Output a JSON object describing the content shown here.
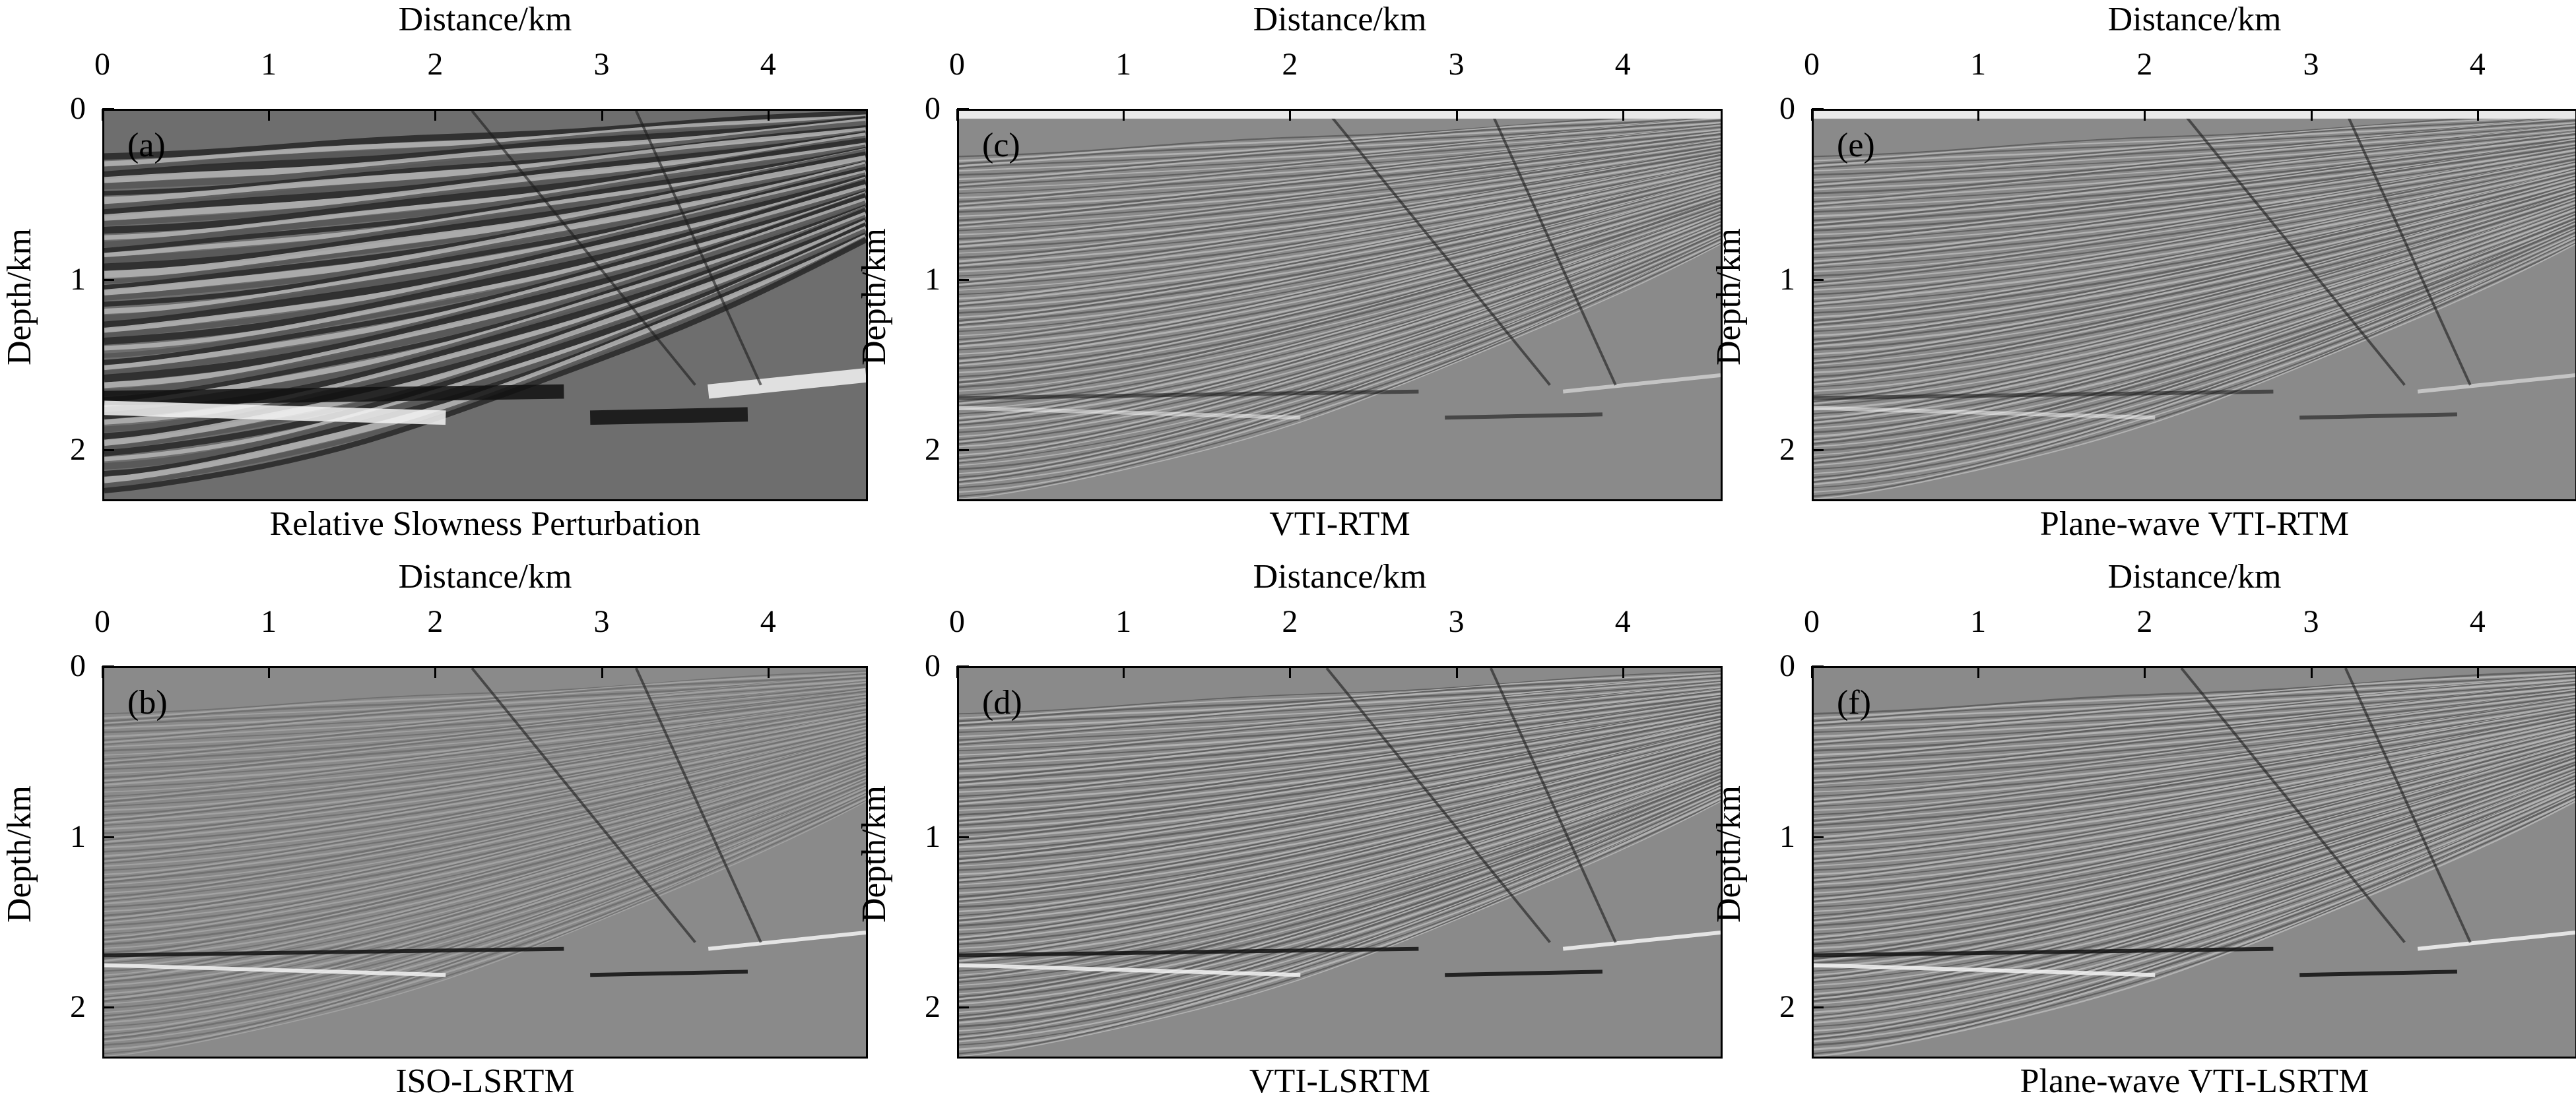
{
  "figure": {
    "panels": [
      {
        "id": "a",
        "letter": "(a)",
        "caption": "Relative Slowness Perturbation",
        "style": "model"
      },
      {
        "id": "c",
        "letter": "(c)",
        "caption": "VTI-RTM",
        "style": "rtm"
      },
      {
        "id": "e",
        "letter": "(e)",
        "caption": "Plane-wave VTI-RTM",
        "style": "rtm"
      },
      {
        "id": "b",
        "letter": "(b)",
        "caption": "ISO-LSRTM",
        "style": "iso"
      },
      {
        "id": "d",
        "letter": "(d)",
        "caption": "VTI-LSRTM",
        "style": "lsrtm"
      },
      {
        "id": "f",
        "letter": "(f)",
        "caption": "Plane-wave VTI-LSRTM",
        "style": "lsrtm"
      }
    ],
    "x_axis_label": "Distance/km",
    "y_axis_label": "Depth/km",
    "x_ticks": [
      "0",
      "1",
      "2",
      "3",
      "4"
    ],
    "y_ticks": [
      "0",
      "1",
      "2"
    ],
    "x_range_km": [
      0,
      4.6
    ],
    "y_range_km": [
      0,
      2.3
    ]
  },
  "colors": {
    "background": "#ffffff",
    "axis": "#000000",
    "seismic_mid": "#8a8a8a",
    "model_mid": "#6e6e6e"
  }
}
